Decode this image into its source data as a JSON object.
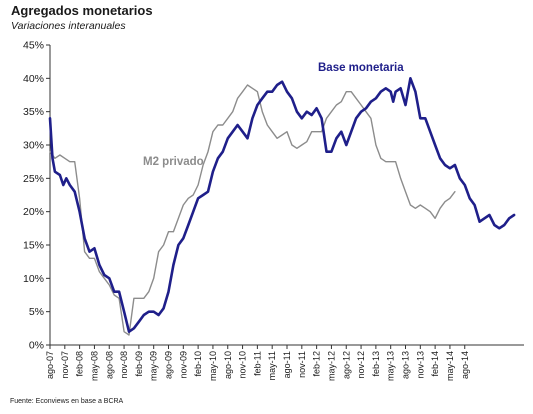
{
  "chart_data": {
    "type": "line",
    "title": "Agregados monetarios",
    "subtitle": "Variaciones interanuales",
    "source": "Fuente: Econviews en base a BCRA",
    "ylim": [
      0,
      45
    ],
    "yticks": [
      0,
      5,
      10,
      15,
      20,
      25,
      30,
      35,
      40,
      45
    ],
    "ytick_labels": [
      "0%",
      "5%",
      "10%",
      "15%",
      "20%",
      "25%",
      "30%",
      "35%",
      "40%",
      "45%"
    ],
    "grid": false,
    "x_labels": [
      "ago-07",
      "nov-07",
      "feb-08",
      "may-08",
      "ago-08",
      "nov-08",
      "feb-09",
      "may-09",
      "ago-09",
      "nov-09",
      "feb-10",
      "may-10",
      "ago-10",
      "nov-10",
      "feb-11",
      "may-11",
      "ago-11",
      "nov-11",
      "feb-12",
      "may-12",
      "ago-12",
      "nov-12",
      "feb-13",
      "may-13",
      "ago-13",
      "nov-13",
      "feb-14",
      "may-14",
      "ago-14"
    ],
    "series": [
      {
        "name": "Base monetaria",
        "color": "#1f1f8a",
        "values": [
          [
            0,
            34
          ],
          [
            0.5,
            28
          ],
          [
            1,
            26
          ],
          [
            2,
            25.5
          ],
          [
            2.7,
            24
          ],
          [
            3.3,
            25
          ],
          [
            4,
            24
          ],
          [
            5,
            23
          ],
          [
            6,
            20
          ],
          [
            7,
            16
          ],
          [
            8,
            14
          ],
          [
            9,
            14.5
          ],
          [
            10,
            12
          ],
          [
            11,
            10.5
          ],
          [
            12,
            10
          ],
          [
            13,
            8
          ],
          [
            14,
            8
          ],
          [
            15,
            5
          ],
          [
            16,
            2
          ],
          [
            17,
            2.5
          ],
          [
            18,
            3.5
          ],
          [
            19,
            4.5
          ],
          [
            20,
            5
          ],
          [
            21,
            5
          ],
          [
            22,
            4.5
          ],
          [
            23,
            5.5
          ],
          [
            24,
            8
          ],
          [
            25,
            12
          ],
          [
            26,
            15
          ],
          [
            27,
            16
          ],
          [
            28,
            18
          ],
          [
            29,
            20
          ],
          [
            30,
            22
          ],
          [
            31,
            22.5
          ],
          [
            32,
            23
          ],
          [
            33,
            26
          ],
          [
            34,
            28
          ],
          [
            35,
            29
          ],
          [
            36,
            31
          ],
          [
            37,
            32
          ],
          [
            38,
            33
          ],
          [
            39,
            32
          ],
          [
            40,
            31
          ],
          [
            41,
            34
          ],
          [
            42,
            36
          ],
          [
            43,
            37
          ],
          [
            44,
            38
          ],
          [
            45,
            38
          ],
          [
            46,
            39
          ],
          [
            47,
            39.5
          ],
          [
            48,
            38
          ],
          [
            49,
            37
          ],
          [
            50,
            35
          ],
          [
            51,
            34
          ],
          [
            52,
            35
          ],
          [
            53,
            34.5
          ],
          [
            54,
            35.5
          ],
          [
            55,
            34
          ],
          [
            56,
            29
          ],
          [
            57,
            29
          ],
          [
            58,
            31
          ],
          [
            59,
            32
          ],
          [
            60,
            30
          ],
          [
            61,
            32
          ],
          [
            62,
            34
          ],
          [
            63,
            35
          ],
          [
            64,
            35.5
          ],
          [
            65,
            36.5
          ],
          [
            66,
            37
          ],
          [
            67,
            38
          ],
          [
            68,
            38.5
          ],
          [
            69,
            38
          ],
          [
            69.5,
            36.5
          ],
          [
            70,
            38
          ],
          [
            71,
            38.5
          ],
          [
            72,
            36
          ],
          [
            73,
            40
          ],
          [
            74,
            38
          ],
          [
            75,
            34
          ],
          [
            76,
            34
          ],
          [
            77,
            32
          ],
          [
            78,
            30
          ],
          [
            79,
            28
          ],
          [
            80,
            27
          ],
          [
            81,
            26.5
          ],
          [
            82,
            27
          ],
          [
            83,
            25
          ],
          [
            84,
            24
          ],
          [
            85,
            22
          ],
          [
            86,
            21
          ],
          [
            87,
            18.5
          ],
          [
            88,
            19
          ],
          [
            89,
            19.5
          ],
          [
            90,
            18
          ],
          [
            91,
            17.5
          ],
          [
            92,
            18
          ],
          [
            93,
            19
          ],
          [
            94,
            19.5
          ]
        ]
      },
      {
        "name": "M2 privado",
        "color": "#8c8c8c",
        "values": [
          [
            0,
            29
          ],
          [
            1,
            28
          ],
          [
            2,
            28.5
          ],
          [
            3,
            28
          ],
          [
            4,
            27.5
          ],
          [
            5,
            27.5
          ],
          [
            6,
            22
          ],
          [
            7,
            14
          ],
          [
            8,
            13
          ],
          [
            9,
            13
          ],
          [
            10,
            11
          ],
          [
            11,
            10
          ],
          [
            12,
            9
          ],
          [
            13,
            7.5
          ],
          [
            14,
            7
          ],
          [
            15,
            2
          ],
          [
            16,
            1.5
          ],
          [
            17,
            7
          ],
          [
            18,
            7
          ],
          [
            19,
            7
          ],
          [
            20,
            8
          ],
          [
            21,
            10
          ],
          [
            22,
            14
          ],
          [
            23,
            15
          ],
          [
            24,
            17
          ],
          [
            25,
            17
          ],
          [
            26,
            19
          ],
          [
            27,
            21
          ],
          [
            28,
            22
          ],
          [
            29,
            22.5
          ],
          [
            30,
            24
          ],
          [
            31,
            27
          ],
          [
            32,
            29
          ],
          [
            33,
            32
          ],
          [
            34,
            33
          ],
          [
            35,
            33
          ],
          [
            36,
            34
          ],
          [
            37,
            35
          ],
          [
            38,
            37
          ],
          [
            39,
            38
          ],
          [
            40,
            39
          ],
          [
            41,
            38.5
          ],
          [
            42,
            38
          ],
          [
            43,
            35
          ],
          [
            44,
            33
          ],
          [
            45,
            32
          ],
          [
            46,
            31
          ],
          [
            47,
            31.5
          ],
          [
            48,
            32
          ],
          [
            49,
            30
          ],
          [
            50,
            29.5
          ],
          [
            51,
            30
          ],
          [
            52,
            30.5
          ],
          [
            53,
            32
          ],
          [
            54,
            32
          ],
          [
            55,
            32
          ],
          [
            56,
            34
          ],
          [
            57,
            35
          ],
          [
            58,
            36
          ],
          [
            59,
            36.5
          ],
          [
            60,
            38
          ],
          [
            61,
            38
          ],
          [
            62,
            37
          ],
          [
            63,
            36
          ],
          [
            64,
            35
          ],
          [
            65,
            34
          ],
          [
            66,
            30
          ],
          [
            67,
            28
          ],
          [
            68,
            27.5
          ],
          [
            69,
            27.5
          ],
          [
            70,
            27.5
          ],
          [
            71,
            25
          ],
          [
            72,
            23
          ],
          [
            73,
            21
          ],
          [
            74,
            20.5
          ],
          [
            75,
            21
          ],
          [
            76,
            20.5
          ],
          [
            77,
            20
          ],
          [
            78,
            19
          ],
          [
            79,
            20.5
          ],
          [
            80,
            21.5
          ],
          [
            81,
            22
          ],
          [
            82,
            23
          ]
        ]
      }
    ],
    "annotations": [
      {
        "text": "Base monetaria",
        "color": "#1f1f8a"
      },
      {
        "text": "M2 privado",
        "color": "#8c8c8c"
      }
    ]
  }
}
